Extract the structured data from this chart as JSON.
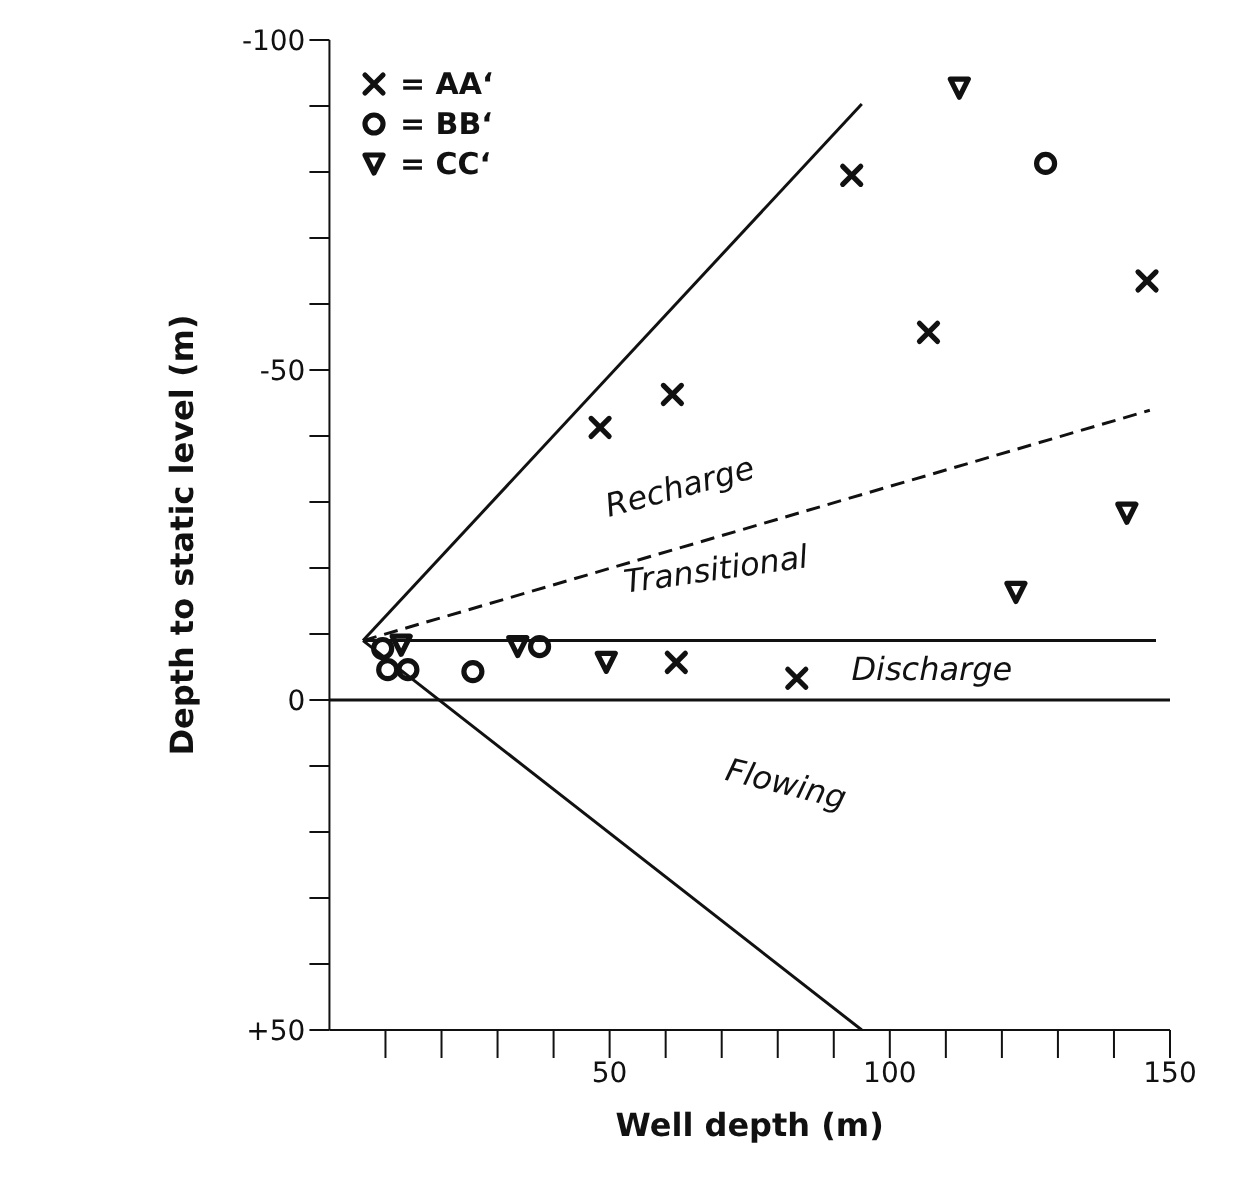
{
  "chart_data": {
    "type": "scatter",
    "xlabel": "Well depth (m)",
    "ylabel": "Depth to static level (m)",
    "xlim": [
      0,
      150
    ],
    "xticks": [
      {
        "value": 10,
        "label": null
      },
      {
        "value": 20,
        "label": null
      },
      {
        "value": 30,
        "label": null
      },
      {
        "value": 40,
        "label": null
      },
      50,
      {
        "value": 60,
        "label": null
      },
      {
        "value": 70,
        "label": null
      },
      {
        "value": 80,
        "label": null
      },
      {
        "value": 90,
        "label": null
      },
      100,
      {
        "value": 110,
        "label": null
      },
      {
        "value": 120,
        "label": null
      },
      {
        "value": 130,
        "label": null
      },
      {
        "value": 140,
        "label": null
      },
      150
    ],
    "ylim": [
      50,
      -100
    ],
    "yticks": [
      -100,
      {
        "value": -90,
        "label": null
      },
      {
        "value": -80,
        "label": null
      },
      {
        "value": -70,
        "label": null
      },
      {
        "value": -60,
        "label": null
      },
      -50,
      {
        "value": -40,
        "label": null
      },
      {
        "value": -30,
        "label": null
      },
      {
        "value": -20,
        "label": null
      },
      {
        "value": -10,
        "label": null
      },
      0,
      {
        "value": 10,
        "label": null
      },
      {
        "value": 20,
        "label": null
      },
      {
        "value": 30,
        "label": null
      },
      {
        "value": 40,
        "label": null
      },
      {
        "value": 50,
        "label": "+50"
      }
    ],
    "grid": false,
    "legend": "top left",
    "series": [
      {
        "name": "= AA‘",
        "type": "scatter",
        "marker": "cross",
        "color": "#111111",
        "x": [
          93.2,
          106.9,
          145.9,
          61.2,
          48.3,
          61.9,
          83.4
        ],
        "values": [
          -79.5,
          -55.7,
          -63.5,
          -46.3,
          -41.3,
          -5.7,
          -3.3
        ]
      },
      {
        "name": "= BB‘",
        "type": "scatter",
        "marker": "circle",
        "color": "#111111",
        "x": [
          127.8,
          37.5,
          25.6,
          9.5,
          10.4,
          14
        ],
        "values": [
          -81.3,
          -8.1,
          -4.3,
          -7.8,
          -4.6,
          -4.6
        ]
      },
      {
        "name": "= CC‘",
        "type": "scatter",
        "marker": "triangle",
        "color": "#111111",
        "x": [
          112.4,
          33.6,
          49.4,
          142.3,
          122.5,
          12.8
        ],
        "values": [
          -92.7,
          -8.1,
          -5.7,
          -28.3,
          -16.3,
          -8.3
        ]
      },
      {
        "type": "line",
        "marker": "none",
        "line_style": "solid",
        "color": "#111111",
        "x": [
          6,
          95
        ],
        "values": [
          -9,
          -90.3
        ]
      },
      {
        "type": "line",
        "marker": "none",
        "line_style": "dashed",
        "color": "#111111",
        "x": [
          6,
          146.4
        ],
        "values": [
          -9,
          -43.9
        ]
      },
      {
        "type": "line",
        "marker": "none",
        "line_style": "solid",
        "color": "#111111",
        "x": [
          6,
          147.5
        ],
        "values": [
          -9,
          -9
        ]
      },
      {
        "type": "line",
        "marker": "none",
        "line_style": "solid",
        "color": "#111111",
        "x": [
          6,
          95
        ],
        "values": [
          -9,
          50
        ]
      }
    ],
    "ref_lines": [
      {
        "axis": "y",
        "value": 0,
        "label": null,
        "color": "#111111"
      }
    ],
    "annotations": [
      "Recharge",
      "Transitional",
      "Discharge",
      "Flowing"
    ]
  }
}
